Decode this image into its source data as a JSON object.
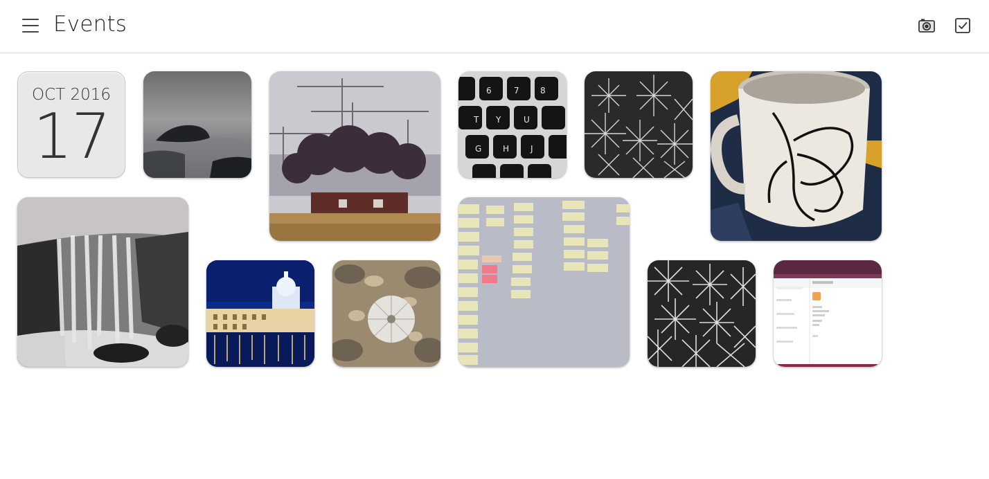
{
  "header": {
    "title": "Events",
    "menu_icon": "hamburger-menu-icon",
    "actions": [
      {
        "name": "camera",
        "icon": "camera-icon"
      },
      {
        "name": "select",
        "icon": "checkbox-icon"
      }
    ]
  },
  "event": {
    "month_year": "OCT 2016",
    "day": "17"
  },
  "photos": [
    {
      "subject": "rock in misty sea",
      "icon": "photo-thumbnail"
    },
    {
      "subject": "cranes and trees over red house",
      "icon": "photo-thumbnail"
    },
    {
      "subject": "keyboard keys",
      "icon": "photo-thumbnail"
    },
    {
      "subject": "white spiky plant",
      "icon": "photo-thumbnail"
    },
    {
      "subject": "white mug with black pattern",
      "icon": "photo-thumbnail"
    },
    {
      "subject": "waterfall",
      "icon": "photo-thumbnail"
    },
    {
      "subject": "city at night with cathedral",
      "icon": "photo-thumbnail"
    },
    {
      "subject": "shells on beach",
      "icon": "photo-thumbnail"
    },
    {
      "subject": "sticky notes on wall",
      "icon": "photo-thumbnail"
    },
    {
      "subject": "white spiky plant",
      "icon": "photo-thumbnail"
    },
    {
      "subject": "app screenshot",
      "icon": "screenshot-thumbnail"
    }
  ],
  "colors": {
    "header_border": "#d6d6d6",
    "date_tile_bg": "#e8e8e8",
    "text": "#333333"
  }
}
